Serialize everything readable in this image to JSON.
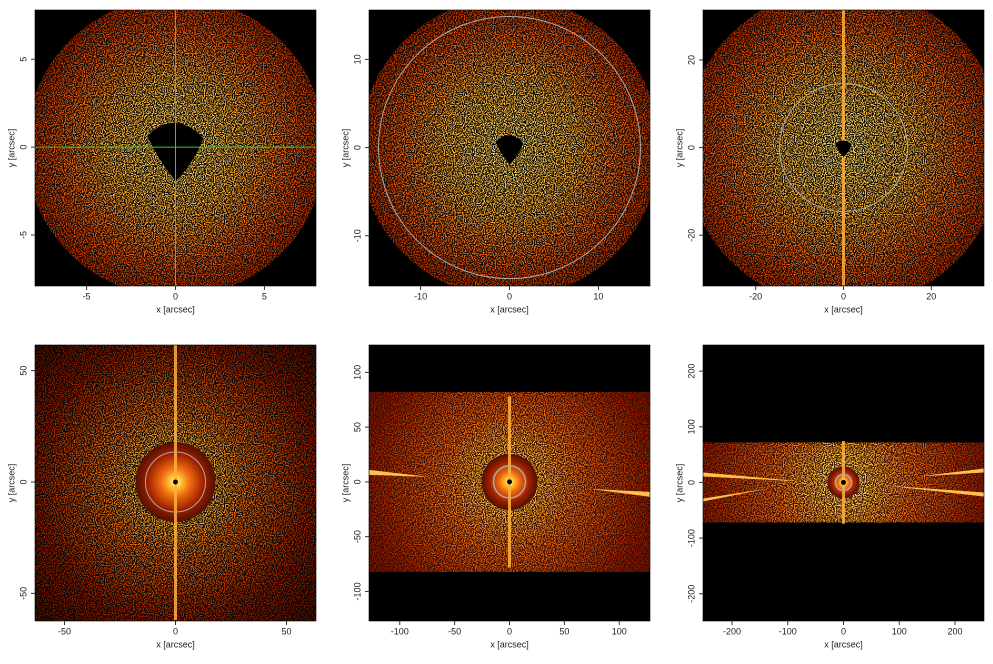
{
  "chart_data": [
    {
      "type": "image",
      "xlabel": "x [arcsec]",
      "ylabel": "y [arcsec]",
      "xlim": [
        -7.9,
        7.9
      ],
      "ylim": [
        -7.9,
        7.8
      ],
      "xticks": [
        -5,
        0,
        5
      ],
      "yticks": [
        -5,
        0,
        5
      ]
    },
    {
      "type": "image",
      "xlabel": "x [arcsec]",
      "ylabel": "y [arcsec]",
      "xlim": [
        -15.8,
        15.8
      ],
      "ylim": [
        -15.7,
        15.6
      ],
      "xticks": [
        -10,
        0,
        10
      ],
      "yticks": [
        -10,
        0,
        10
      ]
    },
    {
      "type": "image",
      "xlabel": "x [arcsec]",
      "ylabel": "y [arcsec]",
      "xlim": [
        -32,
        32
      ],
      "ylim": [
        -31.6,
        31.4
      ],
      "xticks": [
        -20,
        0,
        20
      ],
      "yticks": [
        -20,
        0,
        20
      ]
    },
    {
      "type": "image",
      "xlabel": "x [arcsec]",
      "ylabel": "y [arcsec]",
      "xlim": [
        -63.3,
        63.3
      ],
      "ylim": [
        -62.4,
        61.5
      ],
      "xticks": [
        -50,
        0,
        50
      ],
      "yticks": [
        -50,
        0,
        50
      ]
    },
    {
      "type": "image",
      "xlabel": "x [arcsec]",
      "ylabel": "y [arcsec]",
      "xlim": [
        -128,
        128
      ],
      "ylim": [
        -127,
        125
      ],
      "xticks": [
        -100,
        -50,
        0,
        50,
        100
      ],
      "yticks": [
        -100,
        -50,
        0,
        50,
        100
      ]
    },
    {
      "type": "image",
      "xlabel": "x [arcsec]",
      "ylabel": "y [arcsec]",
      "xlim": [
        -252,
        252
      ],
      "ylim": [
        -249,
        247
      ],
      "xticks": [
        -200,
        -100,
        0,
        100,
        200
      ],
      "yticks": [
        -200,
        -100,
        0,
        100,
        200
      ]
    }
  ]
}
